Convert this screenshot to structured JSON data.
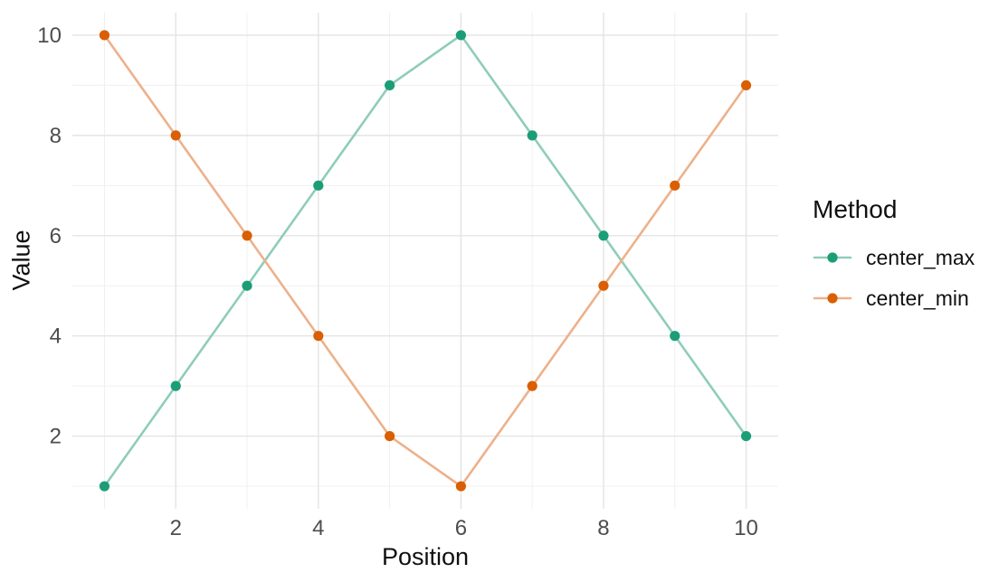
{
  "chart_data": {
    "type": "line",
    "title": "",
    "xlabel": "Position",
    "ylabel": "Value",
    "x": [
      1,
      2,
      3,
      4,
      5,
      6,
      7,
      8,
      9,
      10
    ],
    "series": [
      {
        "name": "center_max",
        "point_color": "#1B9E77",
        "line_color": "#8FCDB9",
        "values": [
          1,
          3,
          5,
          7,
          9,
          10,
          8,
          6,
          4,
          2
        ]
      },
      {
        "name": "center_min",
        "point_color": "#D95F02",
        "line_color": "#EDB18B",
        "values": [
          10,
          8,
          6,
          4,
          2,
          1,
          3,
          5,
          7,
          9
        ]
      }
    ],
    "xlim": [
      0.55,
      10.45
    ],
    "ylim": [
      0.55,
      10.45
    ],
    "x_ticks": [
      2,
      4,
      6,
      8,
      10
    ],
    "y_ticks": [
      2,
      4,
      6,
      8,
      10
    ],
    "x_minor_ticks": [
      1,
      3,
      5,
      7,
      9
    ],
    "y_minor_ticks": [
      1,
      3,
      5,
      7,
      9
    ],
    "grid": "on",
    "legend": {
      "title": "Method",
      "position": "right"
    }
  },
  "colors": {
    "background": "#FFFFFF",
    "grid_major": "#E4E4E4",
    "grid_minor": "#F0F0F0",
    "tick_label": "#4D4D4D",
    "axis_title": "#101010"
  }
}
